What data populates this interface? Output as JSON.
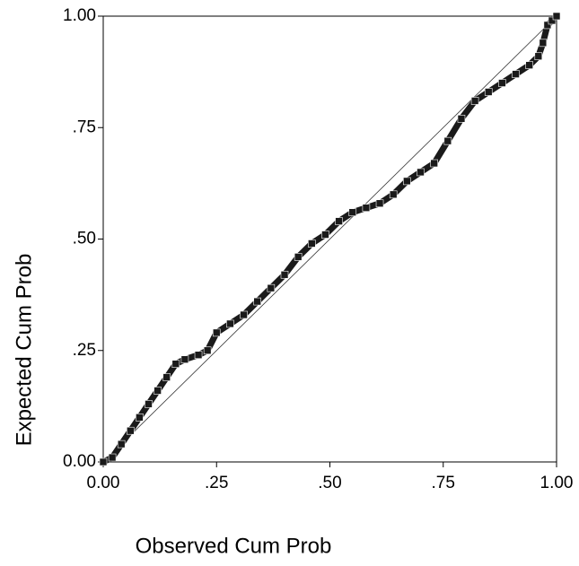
{
  "chart_data": {
    "type": "scatter",
    "x_label": "Observed Cum Prob",
    "y_label": "Expected Cum Prob",
    "xlim": [
      0,
      1
    ],
    "ylim": [
      0,
      1
    ],
    "xticks": [
      {
        "value": 0,
        "label": "0.00"
      },
      {
        "value": 0.25,
        "label": ".25"
      },
      {
        "value": 0.5,
        "label": ".50"
      },
      {
        "value": 0.75,
        "label": ".75"
      },
      {
        "value": 1,
        "label": "1.00"
      }
    ],
    "yticks": [
      {
        "value": 0,
        "label": "0.00"
      },
      {
        "value": 0.25,
        "label": ".25"
      },
      {
        "value": 0.5,
        "label": ".50"
      },
      {
        "value": 0.75,
        "label": ".75"
      },
      {
        "value": 1,
        "label": "1.00"
      }
    ],
    "color": "#1a1a1a",
    "x": [
      0,
      0.02,
      0.04,
      0.06,
      0.08,
      0.1,
      0.12,
      0.14,
      0.16,
      0.18,
      0.21,
      0.23,
      0.25,
      0.28,
      0.31,
      0.34,
      0.37,
      0.4,
      0.43,
      0.46,
      0.49,
      0.52,
      0.55,
      0.58,
      0.61,
      0.64,
      0.67,
      0.7,
      0.73,
      0.76,
      0.79,
      0.82,
      0.85,
      0.88,
      0.91,
      0.94,
      0.96,
      0.97,
      0.98,
      0.99,
      1
    ],
    "values": [
      0,
      0.01,
      0.04,
      0.07,
      0.1,
      0.13,
      0.16,
      0.19,
      0.22,
      0.23,
      0.24,
      0.25,
      0.29,
      0.31,
      0.33,
      0.36,
      0.39,
      0.42,
      0.46,
      0.49,
      0.51,
      0.54,
      0.56,
      0.57,
      0.58,
      0.6,
      0.63,
      0.65,
      0.67,
      0.72,
      0.77,
      0.81,
      0.83,
      0.85,
      0.87,
      0.89,
      0.91,
      0.94,
      0.98,
      0.99,
      1
    ]
  }
}
